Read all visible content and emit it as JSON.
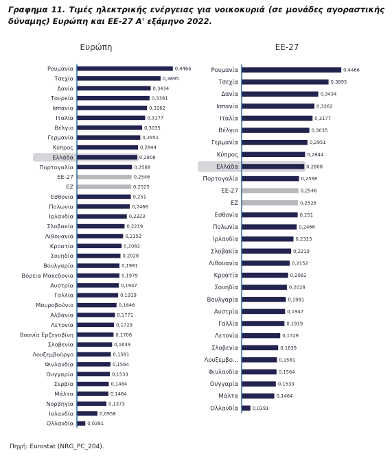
{
  "title": "Γραφημα 11. Τιμές ηλεκτρικής ενέργειας για νοικοκυριά (σε μονάδες αγοραστικής δύναμης) Ευρώπη και ΕΕ-27 Α' εξάμηνο 2022.",
  "source": "Πηγή: Eurostat (NRG_PC_204).",
  "colors": {
    "bar": "#23234f",
    "aggregate": "#b8b8bc",
    "highlight": "#d6d6da",
    "axis": "#1f5f9f"
  },
  "chart_data": [
    {
      "type": "bar",
      "orientation": "horizontal",
      "title": "Ευρώπη",
      "xlim": [
        0,
        0.5
      ],
      "highlight": "Ελλάδα",
      "aggregates": [
        "ΕΕ-27",
        "ΕΖ"
      ],
      "categories": [
        "Ρουμανία",
        "Τσεχία",
        "Δανία",
        "Τουρκία",
        "Ισπανία",
        "Ιταλία",
        "Βέλγιο",
        "Γερμανία",
        "Κύπρος",
        "Ελλάδα",
        "Πορτογαλία",
        "ΕΕ-27",
        "ΕΖ",
        "Εσθονία",
        "Πολωνία",
        "Ιρλανδία",
        "Σλοβακία",
        "Λιθουανία",
        "Κροατία",
        "Σουηδία",
        "Βουλγαρία",
        "Βόρεια Μακεδονία",
        "Αυστρία",
        "Γαλλία",
        "Μαυροβούνιο",
        "Αλβανία",
        "Λετονία",
        "Βοσνία Ερζεγοβίνη",
        "Σλοβενία",
        "Λουξεμβούργο",
        "Φινλανδία",
        "Ουγγαρία",
        "Σερβία",
        "Μάλτα",
        "Νορβηγία",
        "Ισλανδία",
        "Ολλανδία"
      ],
      "values": [
        0.4466,
        0.3895,
        0.3434,
        0.3381,
        0.3262,
        0.3177,
        0.3035,
        0.2951,
        0.2844,
        0.2808,
        0.2568,
        0.2546,
        0.2525,
        0.251,
        0.2466,
        0.2323,
        0.2219,
        0.2152,
        0.2082,
        0.2028,
        0.1981,
        0.1979,
        0.1947,
        0.1919,
        0.1846,
        0.1771,
        0.1729,
        0.1706,
        0.1639,
        0.1581,
        0.1564,
        0.1533,
        0.1484,
        0.1464,
        0.1373,
        0.0958,
        0.0391
      ],
      "labels": [
        "0,4466",
        "0,3895",
        "0,3434",
        "0,3381",
        "0,3262",
        "0,3177",
        "0,3035",
        "0,2951",
        "0,2844",
        "0,2808",
        "0,2568",
        "0,2546",
        "0,2525",
        "0,251",
        "0,2466",
        "0,2323",
        "0,2219",
        "0,2152",
        "0,2082",
        "0,2028",
        "0,1981",
        "0,1979",
        "0,1947",
        "0,1919",
        "0,1846",
        "0,1771",
        "0,1729",
        "0,1706",
        "0,1639",
        "0,1581",
        "0,1564",
        "0,1533",
        "0,1484",
        "0,1464",
        "0,1373",
        "0,0958",
        "0,0391"
      ]
    },
    {
      "type": "bar",
      "orientation": "horizontal",
      "title": "ΕΕ-27",
      "xlim": [
        0,
        0.5
      ],
      "highlight": "Ελλάδα",
      "aggregates": [
        "ΕΕ-27",
        "ΕΖ"
      ],
      "categories": [
        "Ρουμανία",
        "Τσεχία",
        "Δανία",
        "Ισπανία",
        "Ιταλία",
        "Βέλγιο",
        "Γερμανία",
        "Κύπρος",
        "Ελλάδα",
        "Πορτογαλία",
        "ΕΕ-27",
        "ΕΖ",
        "Εσθονία",
        "Πολωνία",
        "Ιρλανδία",
        "Σλοβακία",
        "Λιθουανία",
        "Κροατία",
        "Σουηδία",
        "Βουλγαρία",
        "Αυστρία",
        "Γαλλία",
        "Λετονία",
        "Σλοβενία",
        "Λουξεμβο...",
        "Φινλανδία",
        "Ουγγαρία",
        "Μάλτα",
        "Ολλανδία"
      ],
      "values": [
        0.4466,
        0.3895,
        0.3434,
        0.3262,
        0.3177,
        0.3035,
        0.2951,
        0.2844,
        0.2808,
        0.2568,
        0.2546,
        0.2525,
        0.251,
        0.2466,
        0.2323,
        0.2219,
        0.2152,
        0.2082,
        0.2028,
        0.1981,
        0.1947,
        0.1919,
        0.1729,
        0.1639,
        0.1581,
        0.1564,
        0.1533,
        0.1464,
        0.0391
      ],
      "labels": [
        "0,4466",
        "0,3895",
        "0,3434",
        "0,3262",
        "0,3177",
        "0,3035",
        "0,2951",
        "0,2844",
        "0,2808",
        "0,2568",
        "0,2546",
        "0,2525",
        "0,251",
        "0,2466",
        "0,2323",
        "0,2219",
        "0,2152",
        "0,2082",
        "0,2028",
        "0,1981",
        "0,1947",
        "0,1919",
        "0,1729",
        "0,1639",
        "0,1581",
        "0,1564",
        "0,1533",
        "0,1464",
        "0,0391"
      ]
    }
  ]
}
